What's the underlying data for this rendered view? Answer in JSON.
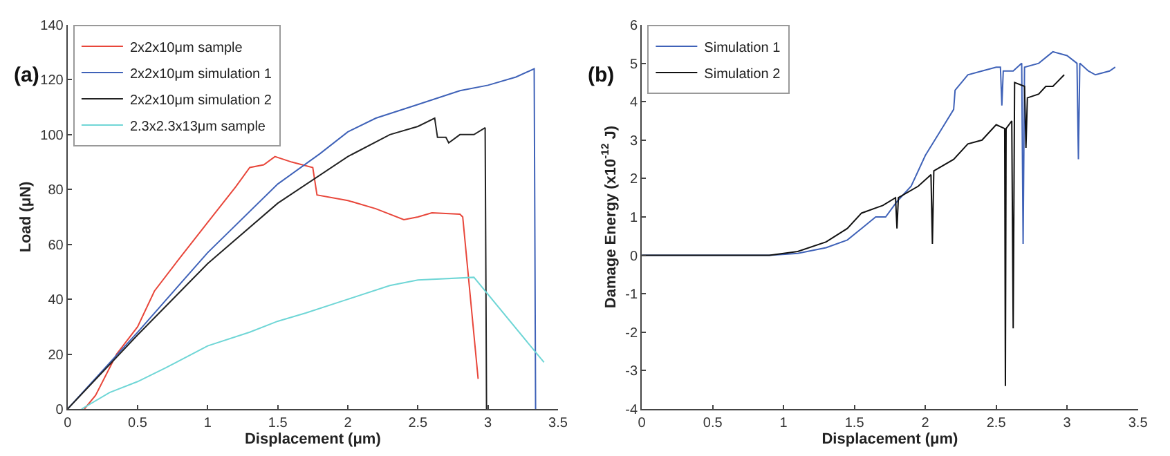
{
  "chart_data": [
    {
      "type": "line",
      "title": "(a)",
      "xlabel": "Displacement (μm)",
      "ylabel": "Load (μN)",
      "xlim": [
        0,
        3.5
      ],
      "ylim": [
        0,
        140
      ],
      "xticks": [
        0,
        0.5,
        1,
        1.5,
        2,
        2.5,
        3,
        3.5
      ],
      "yticks": [
        0,
        20,
        40,
        60,
        80,
        100,
        120,
        140
      ],
      "legend": "top left",
      "marker": "none",
      "line_style": "solid",
      "series": [
        {
          "name": "2x2x10μm sample",
          "color": "#e8463a",
          "x": [
            0.12,
            0.2,
            0.35,
            0.5,
            0.62,
            0.8,
            1.0,
            1.2,
            1.3,
            1.4,
            1.48,
            1.6,
            1.75,
            1.78,
            2.0,
            2.2,
            2.4,
            2.5,
            2.6,
            2.8,
            2.82,
            2.93
          ],
          "values": [
            0,
            5,
            20,
            30,
            43,
            55,
            68,
            81,
            88,
            89,
            92,
            90,
            88,
            78,
            76,
            73,
            69,
            70,
            71.5,
            71,
            70,
            11
          ]
        },
        {
          "name": "2x2x10μm simulation 1",
          "color": "#3f62b8",
          "x": [
            0,
            0.5,
            1.0,
            1.5,
            1.8,
            2.0,
            2.2,
            2.5,
            2.8,
            3.0,
            3.2,
            3.33,
            3.34
          ],
          "values": [
            0,
            28,
            57,
            82,
            93,
            101,
            106,
            111,
            116,
            118,
            121,
            124,
            0
          ]
        },
        {
          "name": "2x2x10μm simulation 2",
          "color": "#222222",
          "x": [
            0,
            0.5,
            1.0,
            1.5,
            2.0,
            2.3,
            2.5,
            2.62,
            2.64,
            2.7,
            2.72,
            2.8,
            2.9,
            2.98,
            2.99
          ],
          "values": [
            0,
            27,
            53,
            75,
            92,
            100,
            103,
            106,
            99,
            99,
            97,
            100,
            100,
            102.5,
            0
          ]
        },
        {
          "name": "2.3x2.3x13μm sample",
          "color": "#6fd6d6",
          "x": [
            0.1,
            0.3,
            0.5,
            0.7,
            1.0,
            1.3,
            1.5,
            1.7,
            2.0,
            2.3,
            2.5,
            2.9,
            3.4
          ],
          "values": [
            0,
            6,
            10,
            15,
            23,
            28,
            32,
            35,
            40,
            45,
            47,
            48,
            17
          ]
        }
      ]
    },
    {
      "type": "line",
      "title": "(b)",
      "xlabel": "Displacement (μm)",
      "ylabel": "Damage Energy (x10$^{-12}$ J)",
      "xlim": [
        0,
        3.5
      ],
      "ylim": [
        -4,
        6
      ],
      "xticks": [
        0,
        0.5,
        1,
        1.5,
        2,
        2.5,
        3,
        3.5
      ],
      "yticks": [
        -4,
        -3,
        -2,
        -1,
        0,
        1,
        2,
        3,
        4,
        5,
        6
      ],
      "legend": "top left",
      "marker": "none",
      "line_style": "solid",
      "series": [
        {
          "name": "Simulation 1",
          "color": "#3f62b8",
          "x": [
            0,
            0.9,
            1.1,
            1.3,
            1.45,
            1.55,
            1.65,
            1.72,
            1.8,
            1.9,
            2.0,
            2.1,
            2.2,
            2.21,
            2.3,
            2.4,
            2.5,
            2.53,
            2.54,
            2.55,
            2.62,
            2.68,
            2.69,
            2.7,
            2.8,
            2.9,
            3.0,
            3.07,
            3.08,
            3.09,
            3.15,
            3.2,
            3.3,
            3.34
          ],
          "values": [
            0,
            0,
            0.05,
            0.2,
            0.4,
            0.7,
            1.0,
            1.0,
            1.4,
            1.8,
            2.6,
            3.2,
            3.8,
            4.3,
            4.7,
            4.8,
            4.9,
            4.9,
            3.9,
            4.8,
            4.8,
            5.0,
            0.3,
            4.9,
            5.0,
            5.3,
            5.2,
            5.0,
            2.5,
            5.0,
            4.8,
            4.7,
            4.8,
            4.9
          ]
        },
        {
          "name": "Simulation 2",
          "color": "#111111",
          "x": [
            0,
            0.9,
            1.1,
            1.3,
            1.45,
            1.55,
            1.7,
            1.79,
            1.8,
            1.81,
            1.95,
            2.04,
            2.05,
            2.06,
            2.2,
            2.3,
            2.4,
            2.5,
            2.56,
            2.565,
            2.57,
            2.61,
            2.62,
            2.63,
            2.7,
            2.71,
            2.72,
            2.8,
            2.85,
            2.9,
            2.98
          ],
          "values": [
            0,
            0,
            0.1,
            0.35,
            0.7,
            1.1,
            1.3,
            1.5,
            0.7,
            1.5,
            1.8,
            2.1,
            0.3,
            2.2,
            2.5,
            2.9,
            3.0,
            3.4,
            3.3,
            -3.4,
            3.3,
            3.5,
            -1.9,
            4.5,
            4.4,
            2.8,
            4.1,
            4.2,
            4.4,
            4.4,
            4.7
          ]
        }
      ]
    }
  ]
}
